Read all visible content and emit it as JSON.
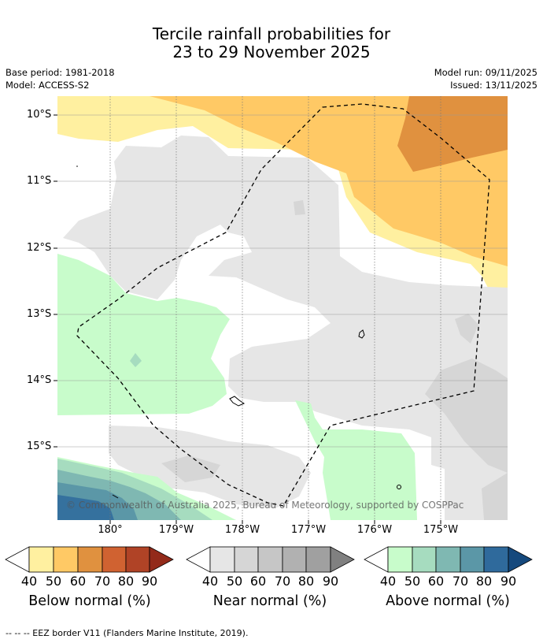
{
  "title": {
    "line1": "Tercile rainfall probabilities for",
    "line2": "23 to 29 November 2025"
  },
  "meta": {
    "base_period": "Base period: 1981-2018",
    "model": "Model: ACCESS-S2",
    "model_run": "Model run: 09/11/2025",
    "issued": "Issued: 13/11/2025"
  },
  "map": {
    "credit": "© Commonwealth of Australia 2025, Bureau of Meteorology, supported by COSPPac",
    "lat_labels": [
      "10°S",
      "11°S",
      "12°S",
      "13°S",
      "14°S",
      "15°S"
    ],
    "lon_labels": [
      "180°",
      "179°W",
      "178°W",
      "177°W",
      "176°W",
      "175°W"
    ],
    "colors": {
      "below": [
        "#fff0a0",
        "#ffc965",
        "#e0913f",
        "#d06231",
        "#b04326",
        "#932a1a"
      ],
      "near": [
        "#e6e6e6",
        "#d6d6d6",
        "#c6c6c6",
        "#b1b1b1",
        "#a0a0a0",
        "#808080"
      ],
      "above": [
        "#c8fccb",
        "#a6dcbf",
        "#7fb8b2",
        "#5b97a7",
        "#2f6a9c",
        "#15497d"
      ],
      "eez_border": "#000000"
    }
  },
  "legend": {
    "below": {
      "title": "Below normal (%)",
      "ticks": [
        "40",
        "50",
        "60",
        "70",
        "80",
        "90"
      ]
    },
    "near": {
      "title": "Near normal (%)",
      "ticks": [
        "40",
        "50",
        "60",
        "70",
        "80",
        "90"
      ]
    },
    "above": {
      "title": "Above normal (%)",
      "ticks": [
        "40",
        "50",
        "60",
        "70",
        "80",
        "90"
      ]
    }
  },
  "footer": "--  --  -- EEZ border V11 (Flanders Marine Institute, 2019)."
}
